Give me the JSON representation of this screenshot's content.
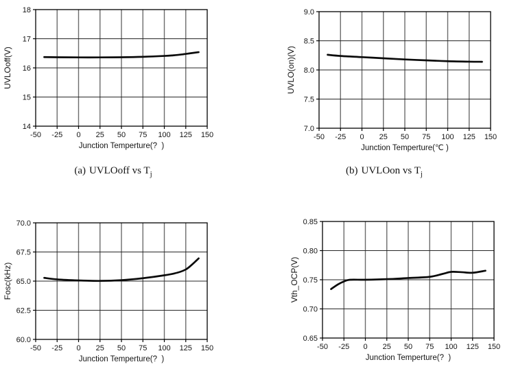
{
  "figure": {
    "background": "#ffffff",
    "colors": {
      "curve": "#0a0a0a",
      "axis_box": "#000000",
      "grid_vertical": "#6b6b6b",
      "grid_horizontal": "#262626",
      "tick": "#000000",
      "text": "#141414"
    }
  },
  "captions": [
    {
      "index": "(a)",
      "text": "UVLOoff vs T",
      "sub": "j"
    },
    {
      "index": "(b)",
      "text": "UVLOon vs T",
      "sub": "j"
    }
  ],
  "chart_data": [
    {
      "type": "line",
      "id": "uvlooff",
      "title": "",
      "xlabel": "Junction Temperture(?  )",
      "ylabel": "UVLOoff(V)",
      "xlim": [
        -50,
        150
      ],
      "ylim": [
        14,
        18
      ],
      "grid": true,
      "legend": false,
      "xtick_values": [
        -50,
        -25,
        0,
        25,
        50,
        75,
        100,
        125,
        150
      ],
      "xtick_labels": [
        "-50",
        "-25",
        "0",
        "25",
        "50",
        "75",
        "100",
        "125",
        "150"
      ],
      "ytick_values": [
        14,
        15,
        16,
        17,
        18
      ],
      "ytick_labels": [
        "14",
        "15",
        "16",
        "17",
        "18"
      ],
      "x": [
        -40,
        -25,
        0,
        25,
        50,
        75,
        100,
        110,
        120,
        130,
        140
      ],
      "y": [
        16.37,
        16.365,
        16.36,
        16.36,
        16.365,
        16.38,
        16.41,
        16.43,
        16.46,
        16.5,
        16.54
      ]
    },
    {
      "type": "line",
      "id": "uvloon",
      "title": "",
      "xlabel": "Junction Temperture(℃ )",
      "ylabel": "UVLO(on)(V)",
      "xlim": [
        -50,
        150
      ],
      "ylim": [
        7.0,
        9.0
      ],
      "grid": true,
      "legend": false,
      "xtick_values": [
        -50,
        -25,
        0,
        25,
        50,
        75,
        100,
        125,
        150
      ],
      "xtick_labels": [
        "-50",
        "-25",
        "0",
        "25",
        "50",
        "75",
        "100",
        "125",
        "150"
      ],
      "ytick_values": [
        7.0,
        7.5,
        8.0,
        8.5,
        9.0
      ],
      "ytick_labels": [
        "7.0",
        "7.5",
        "8.0",
        "8.5",
        "9.0"
      ],
      "x": [
        -40,
        -25,
        0,
        25,
        50,
        75,
        100,
        125,
        140
      ],
      "y": [
        8.26,
        8.24,
        8.22,
        8.2,
        8.18,
        8.165,
        8.15,
        8.142,
        8.14
      ]
    },
    {
      "type": "line",
      "id": "fosc",
      "title": "",
      "xlabel": "Junction Temperture(?  )",
      "ylabel": "Fosc(kHz)",
      "xlim": [
        -50,
        150
      ],
      "ylim": [
        60.0,
        70.0
      ],
      "grid": true,
      "legend": false,
      "xtick_values": [
        -50,
        -25,
        0,
        25,
        50,
        75,
        100,
        125,
        150
      ],
      "xtick_labels": [
        "-50",
        "-25",
        "0",
        "25",
        "50",
        "75",
        "100",
        "125",
        "150"
      ],
      "ytick_values": [
        60.0,
        62.5,
        65.0,
        67.5,
        70.0
      ],
      "ytick_labels": [
        "60.0",
        "62.5",
        "65.0",
        "67.5",
        "70.0"
      ],
      "x": [
        -40,
        -25,
        0,
        25,
        50,
        75,
        100,
        115,
        125,
        132,
        140
      ],
      "y": [
        65.28,
        65.15,
        65.06,
        65.02,
        65.08,
        65.25,
        65.5,
        65.72,
        66.0,
        66.4,
        66.95
      ]
    },
    {
      "type": "line",
      "id": "vth_ocp",
      "title": "",
      "xlabel": "Junction Temperture(?  )",
      "ylabel": "Vth_OCP(V)",
      "xlim": [
        -50,
        150
      ],
      "ylim": [
        0.65,
        0.85
      ],
      "grid": true,
      "legend": false,
      "xtick_values": [
        -50,
        -25,
        0,
        25,
        50,
        75,
        100,
        125,
        150
      ],
      "xtick_labels": [
        "-50",
        "-25",
        "0",
        "25",
        "50",
        "75",
        "100",
        "125",
        "150"
      ],
      "ytick_values": [
        0.65,
        0.7,
        0.75,
        0.8,
        0.85
      ],
      "ytick_labels": [
        "0.65",
        "0.70",
        "0.75",
        "0.80",
        "0.85"
      ],
      "x": [
        -40,
        -32,
        -25,
        -18,
        0,
        25,
        50,
        75,
        90,
        100,
        112,
        125,
        140
      ],
      "y": [
        0.734,
        0.742,
        0.747,
        0.75,
        0.75,
        0.751,
        0.753,
        0.755,
        0.76,
        0.7635,
        0.763,
        0.762,
        0.7655
      ]
    }
  ]
}
